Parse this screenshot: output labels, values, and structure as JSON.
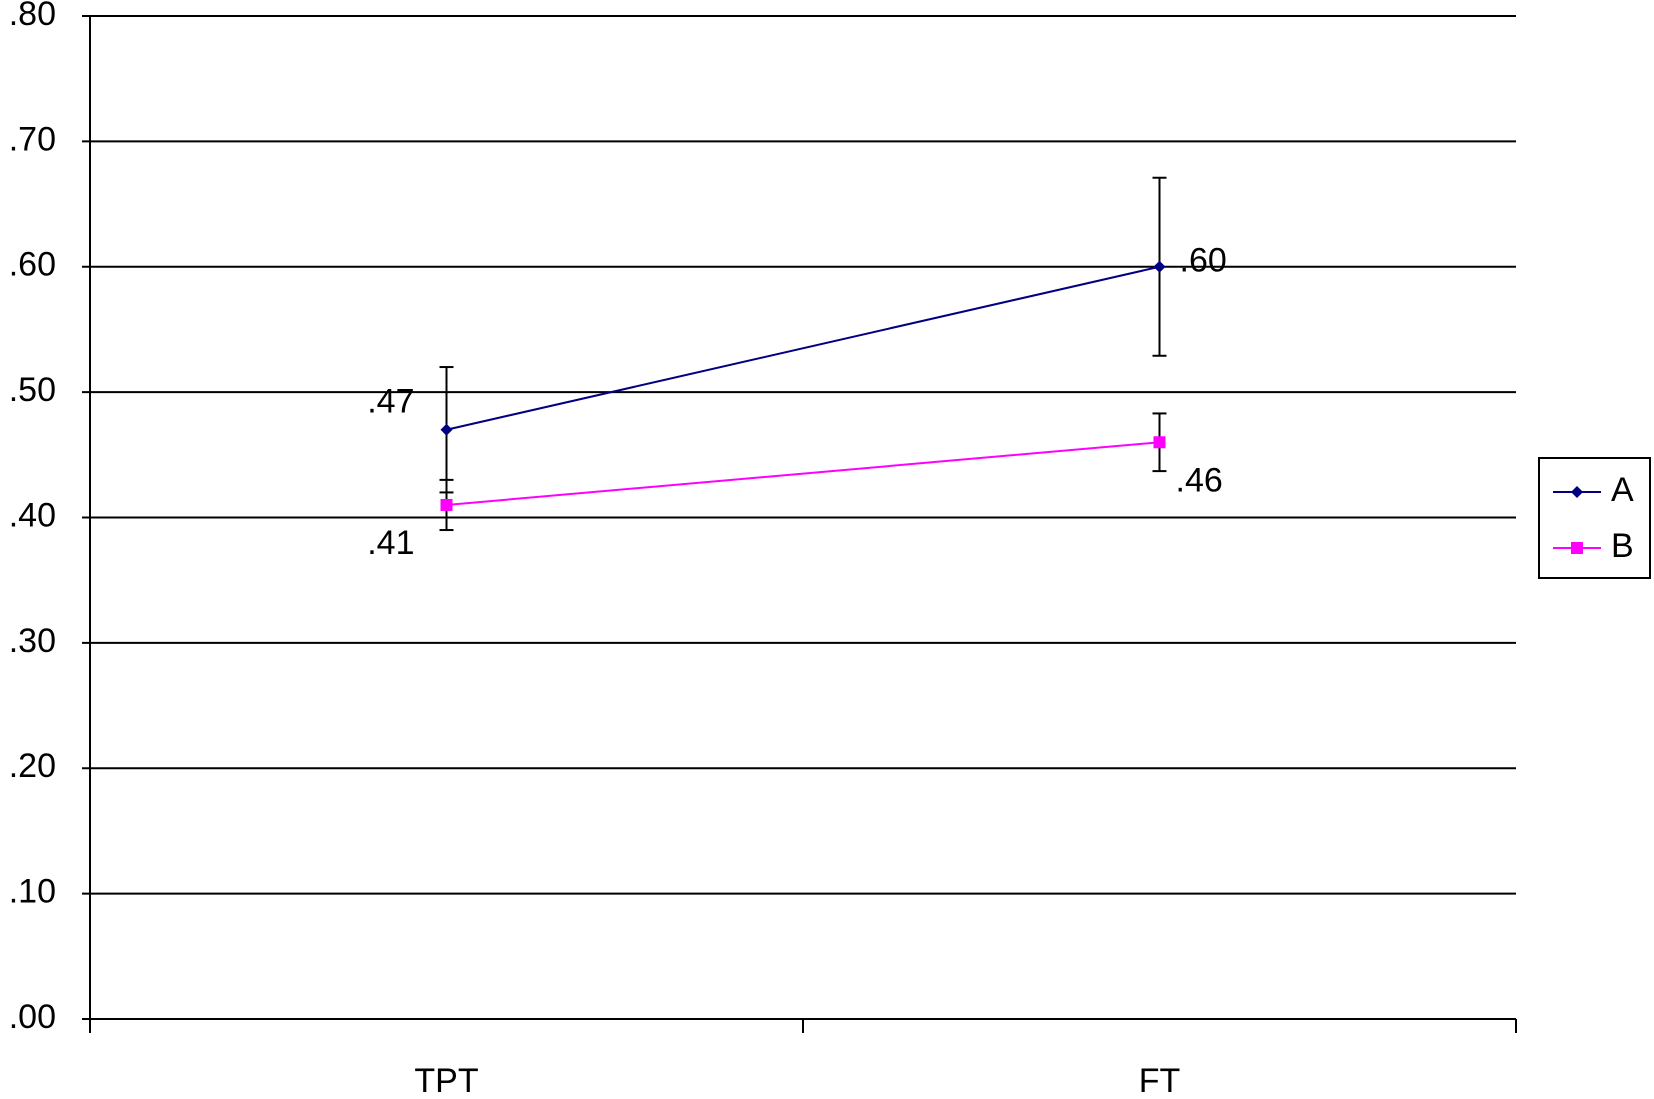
{
  "chart_data": {
    "type": "line",
    "categories": [
      "TPT",
      "FT"
    ],
    "series": [
      {
        "name": "A",
        "color": "#000080",
        "marker": "diamond",
        "values": [
          0.47,
          0.6
        ],
        "errors": [
          0.05,
          0.071
        ],
        "value_labels": [
          ".47",
          ".60"
        ]
      },
      {
        "name": "B",
        "color": "#ff00ff",
        "marker": "square",
        "values": [
          0.41,
          0.46
        ],
        "errors": [
          0.02,
          0.023
        ],
        "value_labels": [
          ".41",
          ".46"
        ]
      }
    ],
    "ylim": [
      0,
      0.8
    ],
    "yticks": [
      {
        "value": 0,
        "label": ".00"
      },
      {
        "value": 0.1,
        "label": ".10"
      },
      {
        "value": 0.2,
        "label": ".20"
      },
      {
        "value": 0.3,
        "label": ".30"
      },
      {
        "value": 0.4,
        "label": ".40"
      },
      {
        "value": 0.5,
        "label": ".50"
      },
      {
        "value": 0.6,
        "label": ".60"
      },
      {
        "value": 0.7,
        "label": ".70"
      },
      {
        "value": 0.8,
        "label": ".80"
      }
    ],
    "grid": true,
    "legend": "right"
  }
}
